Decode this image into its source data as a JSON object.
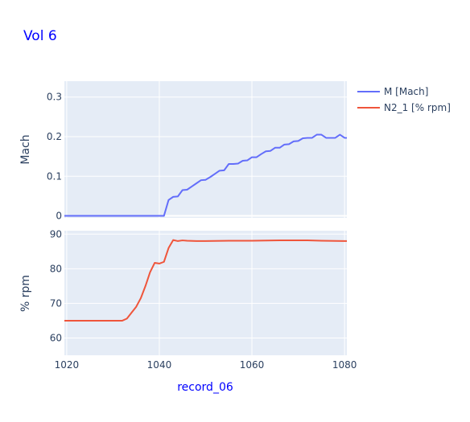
{
  "chart_data": {
    "type": "line",
    "title": "Vol 6",
    "xlabel": "record_06",
    "xlim": [
      1019.5,
      1080.5
    ],
    "x_ticks": [
      "1020",
      "1040",
      "1060",
      "1080"
    ],
    "legend_placement": "top-right",
    "grid": true,
    "colors": {
      "plot_bg": "#e5ecf6",
      "grid": "#ffffff",
      "title": "#0000ff",
      "xlabel": "#0000ff",
      "text": "#2a3f5f"
    },
    "panels": [
      {
        "ylabel": "Mach",
        "ylim": [
          -0.005,
          0.34
        ],
        "y_ticks": [
          "0",
          "0.1",
          "0.2",
          "0.3"
        ],
        "series": [
          {
            "name": "M [Mach]",
            "color": "#636efa",
            "x": [
              1019.5,
              1041,
              1042,
              1043,
              1044,
              1045,
              1046,
              1047,
              1048,
              1049,
              1050,
              1051,
              1052,
              1053,
              1054,
              1055,
              1056,
              1057,
              1058,
              1059,
              1060,
              1061,
              1062,
              1063,
              1064,
              1065,
              1066,
              1067,
              1068,
              1069,
              1070,
              1071,
              1072,
              1073,
              1074,
              1075,
              1076,
              1077,
              1078,
              1079,
              1080,
              1080.5
            ],
            "y": [
              0,
              0,
              0.04,
              0.048,
              0.049,
              0.065,
              0.066,
              0.074,
              0.082,
              0.09,
              0.091,
              0.098,
              0.106,
              0.114,
              0.115,
              0.131,
              0.131,
              0.132,
              0.139,
              0.14,
              0.148,
              0.148,
              0.156,
              0.163,
              0.164,
              0.172,
              0.172,
              0.18,
              0.181,
              0.188,
              0.189,
              0.196,
              0.197,
              0.197,
              0.205,
              0.205,
              0.197,
              0.197,
              0.197,
              0.205,
              0.197,
              0.197
            ]
          }
        ]
      },
      {
        "ylabel": "% rpm",
        "ylim": [
          55,
          91
        ],
        "y_ticks": [
          "60",
          "70",
          "80",
          "90"
        ],
        "series": [
          {
            "name": "N2_1 [% rpm]",
            "color": "#ef553b",
            "x": [
              1019.5,
              1032,
              1033,
              1034,
              1035,
              1036,
              1037,
              1038,
              1039,
              1040,
              1041,
              1042,
              1043,
              1044,
              1045,
              1046,
              1048,
              1050,
              1055,
              1060,
              1066,
              1070,
              1072,
              1075,
              1080,
              1080.5
            ],
            "y": [
              65,
              65,
              65.6,
              67.3,
              69,
              71.5,
              75,
              79,
              81.7,
              81.5,
              82,
              86,
              88.3,
              88,
              88.2,
              88.1,
              88,
              88,
              88.1,
              88.1,
              88.2,
              88.2,
              88.2,
              88.1,
              88,
              88
            ]
          }
        ]
      }
    ]
  }
}
